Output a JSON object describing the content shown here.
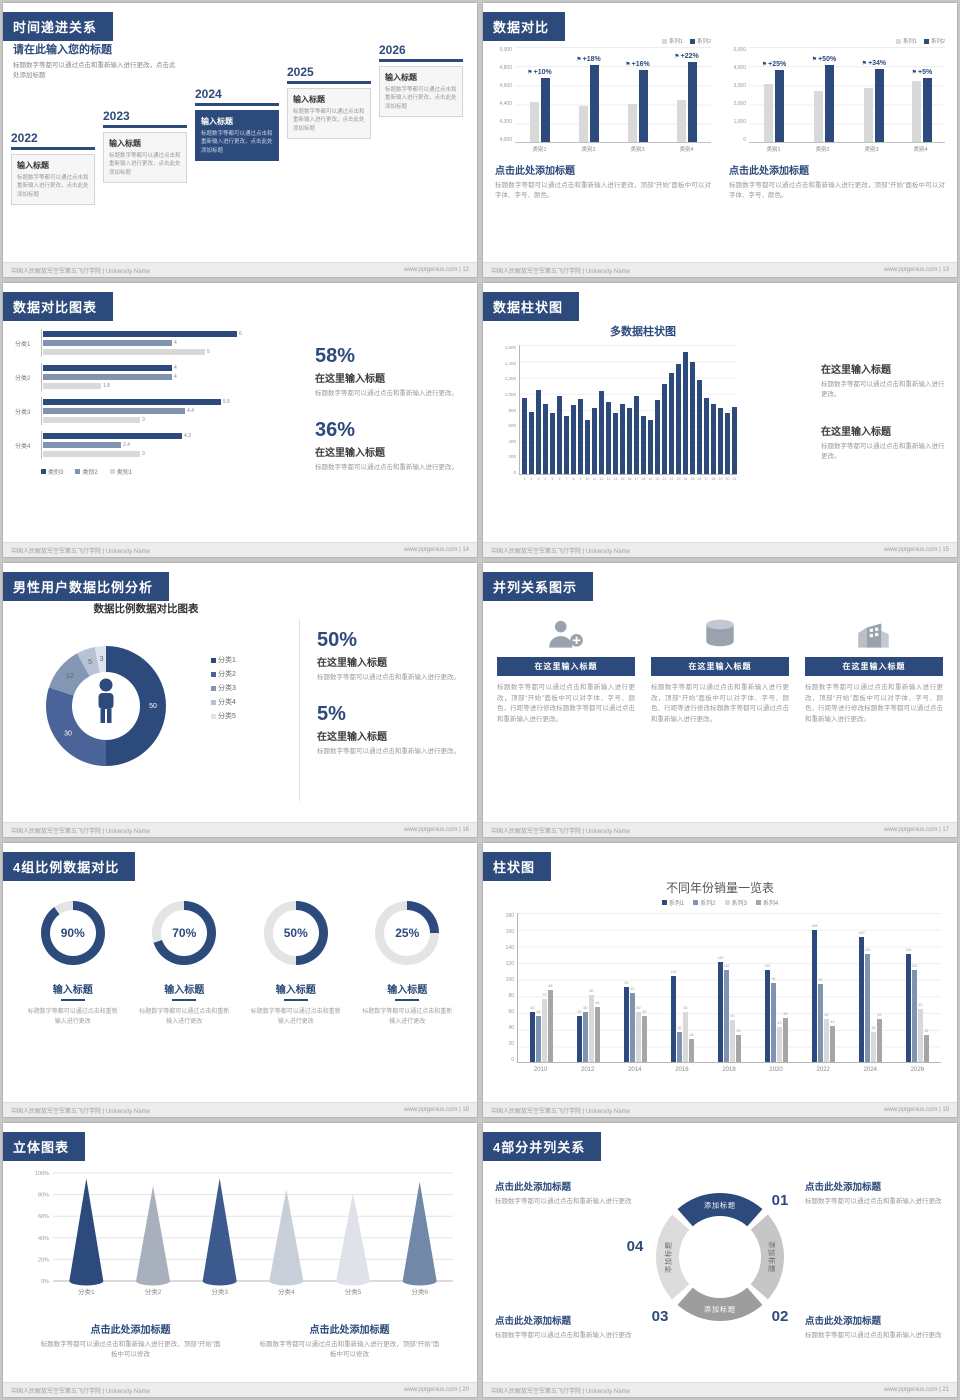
{
  "theme": {
    "navy": "#2d4a7c",
    "steel": "#8093b1",
    "light_gray": "#d9d9d9",
    "mid_gray": "#a6a6a6"
  },
  "page": {
    "footer_org": "中国人民解放军空军第五飞行学院 | University Name",
    "footer_site": "www.pptgenius.com"
  },
  "slides": {
    "s1": {
      "title": "时间递进关系",
      "page_no": "12",
      "footer_right": "www.pptgenius.com | 12",
      "intro_title": "请在此输入您的标题",
      "intro_body": "标题数字等都可以通过点击和重新输入进行更改，点击此处添加标题",
      "items": [
        {
          "year": "2022",
          "label": "输入标题",
          "body": "标题数字等都可以通过点击和重新输入进行更改，点击此处添加标题",
          "highlight": false
        },
        {
          "year": "2023",
          "label": "输入标题",
          "body": "标题数字等都可以通过点击和重新输入进行更改，点击此处添加标题",
          "highlight": false
        },
        {
          "year": "2024",
          "label": "输入标题",
          "body": "标题数字等都可以通过点击和重新输入进行更改，点击此处添加标题",
          "highlight": true
        },
        {
          "year": "2025",
          "label": "输入标题",
          "body": "标题数字等都可以通过点击和重新输入进行更改，点击此处添加标题",
          "highlight": false
        },
        {
          "year": "2026",
          "label": "输入标题",
          "body": "标题数字等都可以通过点击和重新输入进行更改，点击此处添加标题",
          "highlight": false
        }
      ]
    },
    "s2": {
      "title": "数据对比",
      "page_no": "13",
      "footer_right": "www.pptgenius.com | 13",
      "panels": [
        {
          "legend": [
            "系列1",
            "系列2"
          ],
          "colors": [
            "#d9d9d9",
            "#2d4a7c"
          ],
          "y_labels": [
            "5,000",
            "4,800",
            "4,600",
            "4,400",
            "4,200",
            "4,000"
          ],
          "ymin": 4000,
          "ymax": 5000,
          "categories": [
            "类别1",
            "类别2",
            "类别3",
            "类别4"
          ],
          "series1": [
            4500,
            4450,
            4480,
            4520
          ],
          "series2": [
            4800,
            4960,
            4900,
            5000
          ],
          "flags": [
            "+10%",
            "+18%",
            "+16%",
            "+22%"
          ],
          "heading": "点击此处添加标题",
          "body": "标题数字等都可以通过点击和重新输入进行更改，顶部“开始”面板中可以对字体、字号、颜色。"
        },
        {
          "legend": [
            "系列1",
            "系列2"
          ],
          "colors": [
            "#d9d9d9",
            "#2d4a7c"
          ],
          "y_labels": [
            "5,000",
            "4,000",
            "3,000",
            "2,000",
            "1,000",
            "0"
          ],
          "ymin": 0,
          "ymax": 5000,
          "categories": [
            "类别1",
            "类别2",
            "类别3",
            "类别4"
          ],
          "series1": [
            3600,
            3200,
            3400,
            3800
          ],
          "series2": [
            4500,
            4800,
            4550,
            3990
          ],
          "flags": [
            "+25%",
            "+50%",
            "+34%",
            "+5%"
          ],
          "heading": "点击此处添加标题",
          "body": "标题数字等都可以通过点击和重新输入进行更改，顶部“开始”面板中可以对字体、字号、颜色。"
        }
      ]
    },
    "s3": {
      "title": "数据对比图表",
      "page_no": "14",
      "footer_right": "www.pptgenius.com | 14",
      "chart": {
        "categories": [
          "分类1",
          "分类2",
          "分类3",
          "分类4"
        ],
        "values": [
          [
            6,
            4,
            5
          ],
          [
            4,
            4,
            1.8
          ],
          [
            5.5,
            4.4,
            3
          ],
          [
            4.3,
            2.4,
            3
          ]
        ],
        "colors": [
          "#2d4a7c",
          "#8093b1",
          "#d9d9d9"
        ],
        "xmax": 6.5,
        "legend": [
          {
            "label": "类别3",
            "color": "#2d4a7c"
          },
          {
            "label": "类别2",
            "color": "#8093b1"
          },
          {
            "label": "类别1",
            "color": "#d9d9d9"
          }
        ]
      },
      "blocks": [
        {
          "pct": "58%",
          "heading": "在这里输入标题",
          "body": "标题数字等都可以通过点击和重新输入进行更改。"
        },
        {
          "pct": "36%",
          "heading": "在这里输入标题",
          "body": "标题数字等都可以通过点击和重新输入进行更改。"
        }
      ]
    },
    "s4": {
      "title": "数据柱状图",
      "page_no": "15",
      "footer_right": "www.pptgenius.com | 15",
      "chart_title": "多数据柱状图",
      "y_labels": [
        "1,600",
        "1,400",
        "1,200",
        "1,000",
        "800",
        "600",
        "400",
        "200",
        "0"
      ],
      "ymax": 1600,
      "days": [
        "1",
        "2",
        "3",
        "4",
        "5",
        "6",
        "7",
        "8",
        "9",
        "10",
        "11",
        "12",
        "13",
        "14",
        "15",
        "16",
        "17",
        "18",
        "19",
        "20",
        "21",
        "22",
        "23",
        "24",
        "25",
        "26",
        "27",
        "28",
        "29",
        "30",
        "31"
      ],
      "values": [
        950,
        780,
        1050,
        880,
        760,
        980,
        720,
        860,
        940,
        680,
        820,
        1040,
        900,
        760,
        880,
        820,
        980,
        720,
        680,
        920,
        1120,
        1260,
        1380,
        1520,
        1400,
        1180,
        950,
        880,
        820,
        760,
        840
      ],
      "blocks": [
        {
          "heading": "在这里输入标题",
          "body": "标题数字等都可以通过点击和重新输入进行更改。"
        },
        {
          "heading": "在这里输入标题",
          "body": "标题数字等都可以通过点击和重新输入进行更改。"
        }
      ]
    },
    "s5": {
      "title": "男性用户数据比例分析",
      "page_no": "16",
      "footer_right": "www.pptgenius.com | 16",
      "chart_title": "数据比例数据对比图表",
      "segments": [
        {
          "label": "分类1",
          "value": 50,
          "color": "#2d4a7c"
        },
        {
          "label": "分类2",
          "value": 30,
          "color": "#4a6398"
        },
        {
          "label": "分类3",
          "value": 12,
          "color": "#8396b4"
        },
        {
          "label": "分类4",
          "value": 5,
          "color": "#b7c2d6"
        },
        {
          "label": "分类5",
          "value": 3,
          "color": "#dde3ed"
        }
      ],
      "blocks": [
        {
          "pct": "50%",
          "heading": "在这里输入标题",
          "body": "标题数字等都可以通过点击和重新输入进行更改。"
        },
        {
          "pct": "5%",
          "heading": "在这里输入标题",
          "body": "标题数字等都可以通过点击和重新输入进行更改。"
        }
      ]
    },
    "s6": {
      "title": "并列关系图示",
      "page_no": "17",
      "footer_right": "www.pptgenius.com | 17",
      "columns": [
        {
          "icon": "doctor-icon",
          "heading": "在这里输入标题",
          "body": "标题数字等都可以通过点击和重新输入进行更改，顶部“开始”面板中可以对字体、字号、颜色、行距等进行修改标题数字等都可以通过点击和重新输入进行更改。"
        },
        {
          "icon": "database-icon",
          "heading": "在这里输入标题",
          "body": "标题数字等都可以通过点击和重新输入进行更改，顶部“开始”面板中可以对字体、字号、颜色、行距等进行修改标题数字等都可以通过点击和重新输入进行更改。"
        },
        {
          "icon": "building-icon",
          "heading": "在这里输入标题",
          "body": "标题数字等都可以通过点击和重新输入进行更改，顶部“开始”面板中可以对字体、字号、颜色、行距等进行修改标题数字等都可以通过点击和重新输入进行更改。"
        }
      ]
    },
    "s7": {
      "title": "4组比例数据对比",
      "page_no": "18",
      "footer_right": "www.pptgenius.com | 18",
      "gauges": [
        {
          "pct": 90,
          "label": "90%",
          "heading": "输入标题",
          "body": "标题数字等都可以通过点击和重新输入进行更改"
        },
        {
          "pct": 70,
          "label": "70%",
          "heading": "输入标题",
          "body": "标题数字等都可以通过点击和重新输入进行更改"
        },
        {
          "pct": 50,
          "label": "50%",
          "heading": "输入标题",
          "body": "标题数字等都可以通过点击和重新输入进行更改"
        },
        {
          "pct": 25,
          "label": "25%",
          "heading": "输入标题",
          "body": "标题数字等都可以通过点击和重新输入进行更改"
        }
      ]
    },
    "s8": {
      "title": "柱状图",
      "page_no": "19",
      "footer_right": "www.pptgenius.com | 19",
      "chart_title": "不同年份销量一览表",
      "legend": [
        "系列1",
        "系列2",
        "系列3",
        "系列4"
      ],
      "colors": [
        "#2d4a7c",
        "#8093b1",
        "#d9d9d9",
        "#a6a6a6"
      ],
      "y_labels": [
        "180",
        "160",
        "140",
        "120",
        "100",
        "80",
        "60",
        "40",
        "20",
        "0"
      ],
      "ymax": 180,
      "categories": [
        "2010",
        "2012",
        "2014",
        "2016",
        "2018",
        "2020",
        "2022",
        "2024",
        "2026"
      ],
      "series": [
        {
          "name": "系列1",
          "values": [
            60,
            55,
            90,
            103,
            120,
            110,
            158,
            150,
            130
          ]
        },
        {
          "name": "系列2",
          "values": [
            55,
            60,
            83,
            36,
            110,
            95,
            93,
            130,
            110
          ]
        },
        {
          "name": "系列3",
          "values": [
            75,
            80,
            60,
            60,
            50,
            42,
            52,
            36,
            63
          ]
        },
        {
          "name": "系列4",
          "values": [
            86,
            66,
            55,
            28,
            33,
            53,
            43,
            52,
            32
          ]
        }
      ]
    },
    "s9": {
      "title": "立体图表",
      "page_no": "20",
      "footer_right": "www.pptgenius.com | 20",
      "y_labels": [
        "100%",
        "80%",
        "60%",
        "40%",
        "20%",
        "0%"
      ],
      "categories": [
        "分类1",
        "分类2",
        "分类3",
        "分类4",
        "分类5",
        "分类6"
      ],
      "values": [
        95,
        88,
        95,
        85,
        82,
        92
      ],
      "colors": [
        "#2d4a7c",
        "#a8b0bd",
        "#3c5a8e",
        "#c9cfd9",
        "#dfe3e9",
        "#7288a9"
      ],
      "blocks": [
        {
          "heading": "点击此处添加标题",
          "body": "标题数字等都可以通过点击和重新输入进行更改，顶部“开始”面板中可以修改"
        },
        {
          "heading": "点击此处添加标题",
          "body": "标题数字等都可以通过点击和重新输入进行更改，顶部“开始”面板中可以修改"
        }
      ]
    },
    "s10": {
      "title": "4部分并列关系",
      "page_no": "21",
      "footer_right": "www.pptgenius.com | 21",
      "ring_label": "添加标题",
      "numbers": [
        "01",
        "02",
        "03",
        "04"
      ],
      "blocks": [
        {
          "heading": "点击此处添加标题",
          "body": "标题数字等都可以通过点击和重新输入进行更改"
        },
        {
          "heading": "点击此处添加标题",
          "body": "标题数字等都可以通过点击和重新输入进行更改"
        },
        {
          "heading": "点击此处添加标题",
          "body": "标题数字等都可以通过点击和重新输入进行更改"
        },
        {
          "heading": "点击此处添加标题",
          "body": "标题数字等都可以通过点击和重新输入进行更改"
        }
      ]
    }
  }
}
